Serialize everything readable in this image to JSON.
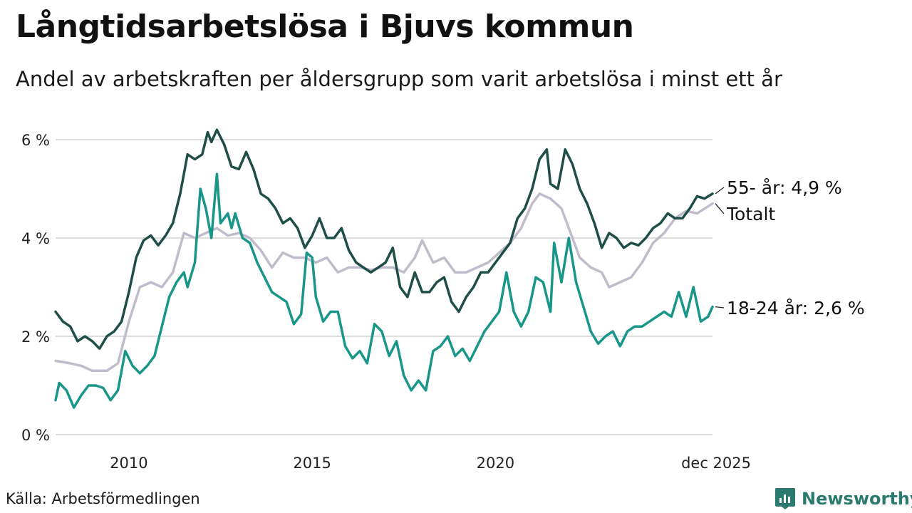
{
  "colors": {
    "older": "#1f4e48",
    "total": "#c0bccb",
    "young": "#18968a",
    "grid": "#dddddd",
    "brand": "#2a7a6f"
  },
  "footer": {
    "source": "Källa: Arbetsförmedlingen",
    "brand": "Newsworthy"
  },
  "chart_data": {
    "type": "line",
    "title": "Långtidsarbetslösa i Bjuvs kommun",
    "subtitle": "Andel av arbetskraften per åldersgrupp som varit arbetslösa i minst ett år",
    "x_domain": [
      2008.0,
      2025.92
    ],
    "ylim": [
      0,
      6
    ],
    "y_ticks": [
      {
        "value": 0,
        "label": "0 %"
      },
      {
        "value": 2,
        "label": "2 %"
      },
      {
        "value": 4,
        "label": "4 %"
      },
      {
        "value": 6,
        "label": "6 %"
      }
    ],
    "x_ticks": [
      {
        "value": 2010,
        "label": "2010"
      },
      {
        "value": 2015,
        "label": "2015"
      },
      {
        "value": 2020,
        "label": "2020"
      },
      {
        "value": 2025.92,
        "label": "dec 2025"
      }
    ],
    "series": [
      {
        "name": "55- år",
        "label": "55- år: 4,9 %",
        "color": "#1f4e48",
        "points": [
          [
            2008.0,
            2.5
          ],
          [
            2008.2,
            2.3
          ],
          [
            2008.4,
            2.2
          ],
          [
            2008.6,
            1.9
          ],
          [
            2008.8,
            2.0
          ],
          [
            2009.0,
            1.9
          ],
          [
            2009.2,
            1.75
          ],
          [
            2009.4,
            2.0
          ],
          [
            2009.6,
            2.1
          ],
          [
            2009.8,
            2.3
          ],
          [
            2010.0,
            2.9
          ],
          [
            2010.2,
            3.6
          ],
          [
            2010.4,
            3.95
          ],
          [
            2010.6,
            4.05
          ],
          [
            2010.8,
            3.85
          ],
          [
            2011.0,
            4.05
          ],
          [
            2011.2,
            4.3
          ],
          [
            2011.4,
            4.9
          ],
          [
            2011.6,
            5.7
          ],
          [
            2011.8,
            5.6
          ],
          [
            2012.0,
            5.7
          ],
          [
            2012.15,
            6.15
          ],
          [
            2012.25,
            5.95
          ],
          [
            2012.4,
            6.2
          ],
          [
            2012.6,
            5.9
          ],
          [
            2012.8,
            5.45
          ],
          [
            2013.0,
            5.4
          ],
          [
            2013.2,
            5.75
          ],
          [
            2013.4,
            5.4
          ],
          [
            2013.6,
            4.9
          ],
          [
            2013.8,
            4.8
          ],
          [
            2014.0,
            4.6
          ],
          [
            2014.2,
            4.3
          ],
          [
            2014.4,
            4.4
          ],
          [
            2014.6,
            4.2
          ],
          [
            2014.8,
            3.8
          ],
          [
            2015.0,
            4.05
          ],
          [
            2015.2,
            4.4
          ],
          [
            2015.4,
            4.0
          ],
          [
            2015.6,
            4.0
          ],
          [
            2015.8,
            4.2
          ],
          [
            2016.0,
            3.75
          ],
          [
            2016.2,
            3.5
          ],
          [
            2016.4,
            3.4
          ],
          [
            2016.6,
            3.3
          ],
          [
            2016.8,
            3.4
          ],
          [
            2017.0,
            3.5
          ],
          [
            2017.2,
            3.8
          ],
          [
            2017.4,
            3.0
          ],
          [
            2017.6,
            2.8
          ],
          [
            2017.8,
            3.3
          ],
          [
            2018.0,
            2.9
          ],
          [
            2018.2,
            2.9
          ],
          [
            2018.4,
            3.1
          ],
          [
            2018.6,
            3.2
          ],
          [
            2018.8,
            2.7
          ],
          [
            2019.0,
            2.5
          ],
          [
            2019.2,
            2.8
          ],
          [
            2019.4,
            3.0
          ],
          [
            2019.6,
            3.3
          ],
          [
            2019.8,
            3.3
          ],
          [
            2020.0,
            3.5
          ],
          [
            2020.2,
            3.7
          ],
          [
            2020.4,
            3.9
          ],
          [
            2020.6,
            4.4
          ],
          [
            2020.8,
            4.6
          ],
          [
            2021.0,
            5.0
          ],
          [
            2021.2,
            5.6
          ],
          [
            2021.4,
            5.8
          ],
          [
            2021.5,
            5.1
          ],
          [
            2021.7,
            5.0
          ],
          [
            2021.9,
            5.8
          ],
          [
            2022.1,
            5.5
          ],
          [
            2022.3,
            5.0
          ],
          [
            2022.5,
            4.7
          ],
          [
            2022.7,
            4.3
          ],
          [
            2022.9,
            3.8
          ],
          [
            2023.1,
            4.1
          ],
          [
            2023.3,
            4.0
          ],
          [
            2023.5,
            3.8
          ],
          [
            2023.7,
            3.9
          ],
          [
            2023.9,
            3.85
          ],
          [
            2024.1,
            4.0
          ],
          [
            2024.3,
            4.2
          ],
          [
            2024.5,
            4.3
          ],
          [
            2024.7,
            4.5
          ],
          [
            2024.9,
            4.4
          ],
          [
            2025.1,
            4.4
          ],
          [
            2025.3,
            4.6
          ],
          [
            2025.5,
            4.85
          ],
          [
            2025.7,
            4.8
          ],
          [
            2025.92,
            4.9
          ]
        ]
      },
      {
        "name": "Totalt",
        "label": "Totalt",
        "color": "#c0bccb",
        "points": [
          [
            2008.0,
            1.5
          ],
          [
            2008.4,
            1.45
          ],
          [
            2008.7,
            1.4
          ],
          [
            2009.0,
            1.3
          ],
          [
            2009.4,
            1.3
          ],
          [
            2009.7,
            1.45
          ],
          [
            2010.0,
            2.3
          ],
          [
            2010.3,
            3.0
          ],
          [
            2010.6,
            3.1
          ],
          [
            2010.9,
            3.0
          ],
          [
            2011.2,
            3.3
          ],
          [
            2011.5,
            4.1
          ],
          [
            2011.8,
            4.0
          ],
          [
            2012.1,
            4.1
          ],
          [
            2012.4,
            4.2
          ],
          [
            2012.7,
            4.05
          ],
          [
            2013.0,
            4.1
          ],
          [
            2013.3,
            4.0
          ],
          [
            2013.6,
            3.75
          ],
          [
            2013.9,
            3.4
          ],
          [
            2014.2,
            3.7
          ],
          [
            2014.5,
            3.6
          ],
          [
            2014.8,
            3.6
          ],
          [
            2015.1,
            3.5
          ],
          [
            2015.4,
            3.6
          ],
          [
            2015.7,
            3.3
          ],
          [
            2016.0,
            3.4
          ],
          [
            2016.3,
            3.4
          ],
          [
            2016.6,
            3.35
          ],
          [
            2016.9,
            3.4
          ],
          [
            2017.2,
            3.4
          ],
          [
            2017.5,
            3.3
          ],
          [
            2017.8,
            3.6
          ],
          [
            2018.0,
            3.95
          ],
          [
            2018.3,
            3.5
          ],
          [
            2018.6,
            3.6
          ],
          [
            2018.9,
            3.3
          ],
          [
            2019.2,
            3.3
          ],
          [
            2019.5,
            3.4
          ],
          [
            2019.8,
            3.5
          ],
          [
            2020.1,
            3.7
          ],
          [
            2020.4,
            3.9
          ],
          [
            2020.7,
            4.2
          ],
          [
            2021.0,
            4.7
          ],
          [
            2021.2,
            4.9
          ],
          [
            2021.5,
            4.8
          ],
          [
            2021.8,
            4.6
          ],
          [
            2022.0,
            4.2
          ],
          [
            2022.3,
            3.6
          ],
          [
            2022.6,
            3.4
          ],
          [
            2022.9,
            3.3
          ],
          [
            2023.1,
            3.0
          ],
          [
            2023.4,
            3.1
          ],
          [
            2023.7,
            3.2
          ],
          [
            2024.0,
            3.5
          ],
          [
            2024.3,
            3.9
          ],
          [
            2024.6,
            4.1
          ],
          [
            2024.9,
            4.4
          ],
          [
            2025.2,
            4.55
          ],
          [
            2025.5,
            4.5
          ],
          [
            2025.92,
            4.7
          ]
        ]
      },
      {
        "name": "18-24 år",
        "label": "18-24 år: 2,6 %",
        "color": "#18968a",
        "points": [
          [
            2008.0,
            0.7
          ],
          [
            2008.1,
            1.05
          ],
          [
            2008.3,
            0.9
          ],
          [
            2008.5,
            0.55
          ],
          [
            2008.7,
            0.8
          ],
          [
            2008.9,
            1.0
          ],
          [
            2009.1,
            1.0
          ],
          [
            2009.3,
            0.95
          ],
          [
            2009.5,
            0.7
          ],
          [
            2009.7,
            0.9
          ],
          [
            2009.9,
            1.7
          ],
          [
            2010.1,
            1.4
          ],
          [
            2010.3,
            1.25
          ],
          [
            2010.5,
            1.4
          ],
          [
            2010.7,
            1.6
          ],
          [
            2010.9,
            2.2
          ],
          [
            2011.1,
            2.8
          ],
          [
            2011.3,
            3.1
          ],
          [
            2011.5,
            3.3
          ],
          [
            2011.6,
            3.0
          ],
          [
            2011.8,
            3.5
          ],
          [
            2011.95,
            5.0
          ],
          [
            2012.1,
            4.6
          ],
          [
            2012.25,
            4.0
          ],
          [
            2012.4,
            5.3
          ],
          [
            2012.5,
            4.3
          ],
          [
            2012.7,
            4.5
          ],
          [
            2012.8,
            4.2
          ],
          [
            2012.9,
            4.5
          ],
          [
            2013.1,
            4.0
          ],
          [
            2013.3,
            3.9
          ],
          [
            2013.5,
            3.5
          ],
          [
            2013.7,
            3.2
          ],
          [
            2013.9,
            2.9
          ],
          [
            2014.1,
            2.8
          ],
          [
            2014.3,
            2.7
          ],
          [
            2014.5,
            2.25
          ],
          [
            2014.7,
            2.45
          ],
          [
            2014.85,
            3.7
          ],
          [
            2015.0,
            3.6
          ],
          [
            2015.1,
            2.8
          ],
          [
            2015.3,
            2.3
          ],
          [
            2015.5,
            2.5
          ],
          [
            2015.7,
            2.5
          ],
          [
            2015.9,
            1.8
          ],
          [
            2016.1,
            1.55
          ],
          [
            2016.3,
            1.7
          ],
          [
            2016.5,
            1.45
          ],
          [
            2016.7,
            2.25
          ],
          [
            2016.9,
            2.1
          ],
          [
            2017.1,
            1.6
          ],
          [
            2017.3,
            1.9
          ],
          [
            2017.5,
            1.2
          ],
          [
            2017.7,
            0.9
          ],
          [
            2017.9,
            1.1
          ],
          [
            2018.1,
            0.9
          ],
          [
            2018.3,
            1.7
          ],
          [
            2018.5,
            1.8
          ],
          [
            2018.7,
            2.0
          ],
          [
            2018.9,
            1.6
          ],
          [
            2019.1,
            1.75
          ],
          [
            2019.3,
            1.5
          ],
          [
            2019.5,
            1.8
          ],
          [
            2019.7,
            2.1
          ],
          [
            2019.9,
            2.3
          ],
          [
            2020.1,
            2.5
          ],
          [
            2020.3,
            3.3
          ],
          [
            2020.5,
            2.5
          ],
          [
            2020.7,
            2.2
          ],
          [
            2020.9,
            2.5
          ],
          [
            2021.1,
            3.2
          ],
          [
            2021.3,
            3.1
          ],
          [
            2021.5,
            2.5
          ],
          [
            2021.6,
            3.9
          ],
          [
            2021.8,
            3.1
          ],
          [
            2022.0,
            4.0
          ],
          [
            2022.2,
            3.1
          ],
          [
            2022.4,
            2.6
          ],
          [
            2022.6,
            2.1
          ],
          [
            2022.8,
            1.85
          ],
          [
            2023.0,
            2.0
          ],
          [
            2023.2,
            2.1
          ],
          [
            2023.4,
            1.8
          ],
          [
            2023.6,
            2.1
          ],
          [
            2023.8,
            2.2
          ],
          [
            2024.0,
            2.2
          ],
          [
            2024.2,
            2.3
          ],
          [
            2024.4,
            2.4
          ],
          [
            2024.6,
            2.5
          ],
          [
            2024.8,
            2.4
          ],
          [
            2025.0,
            2.9
          ],
          [
            2025.2,
            2.4
          ],
          [
            2025.4,
            3.0
          ],
          [
            2025.6,
            2.3
          ],
          [
            2025.8,
            2.4
          ],
          [
            2025.92,
            2.6
          ]
        ]
      }
    ]
  }
}
